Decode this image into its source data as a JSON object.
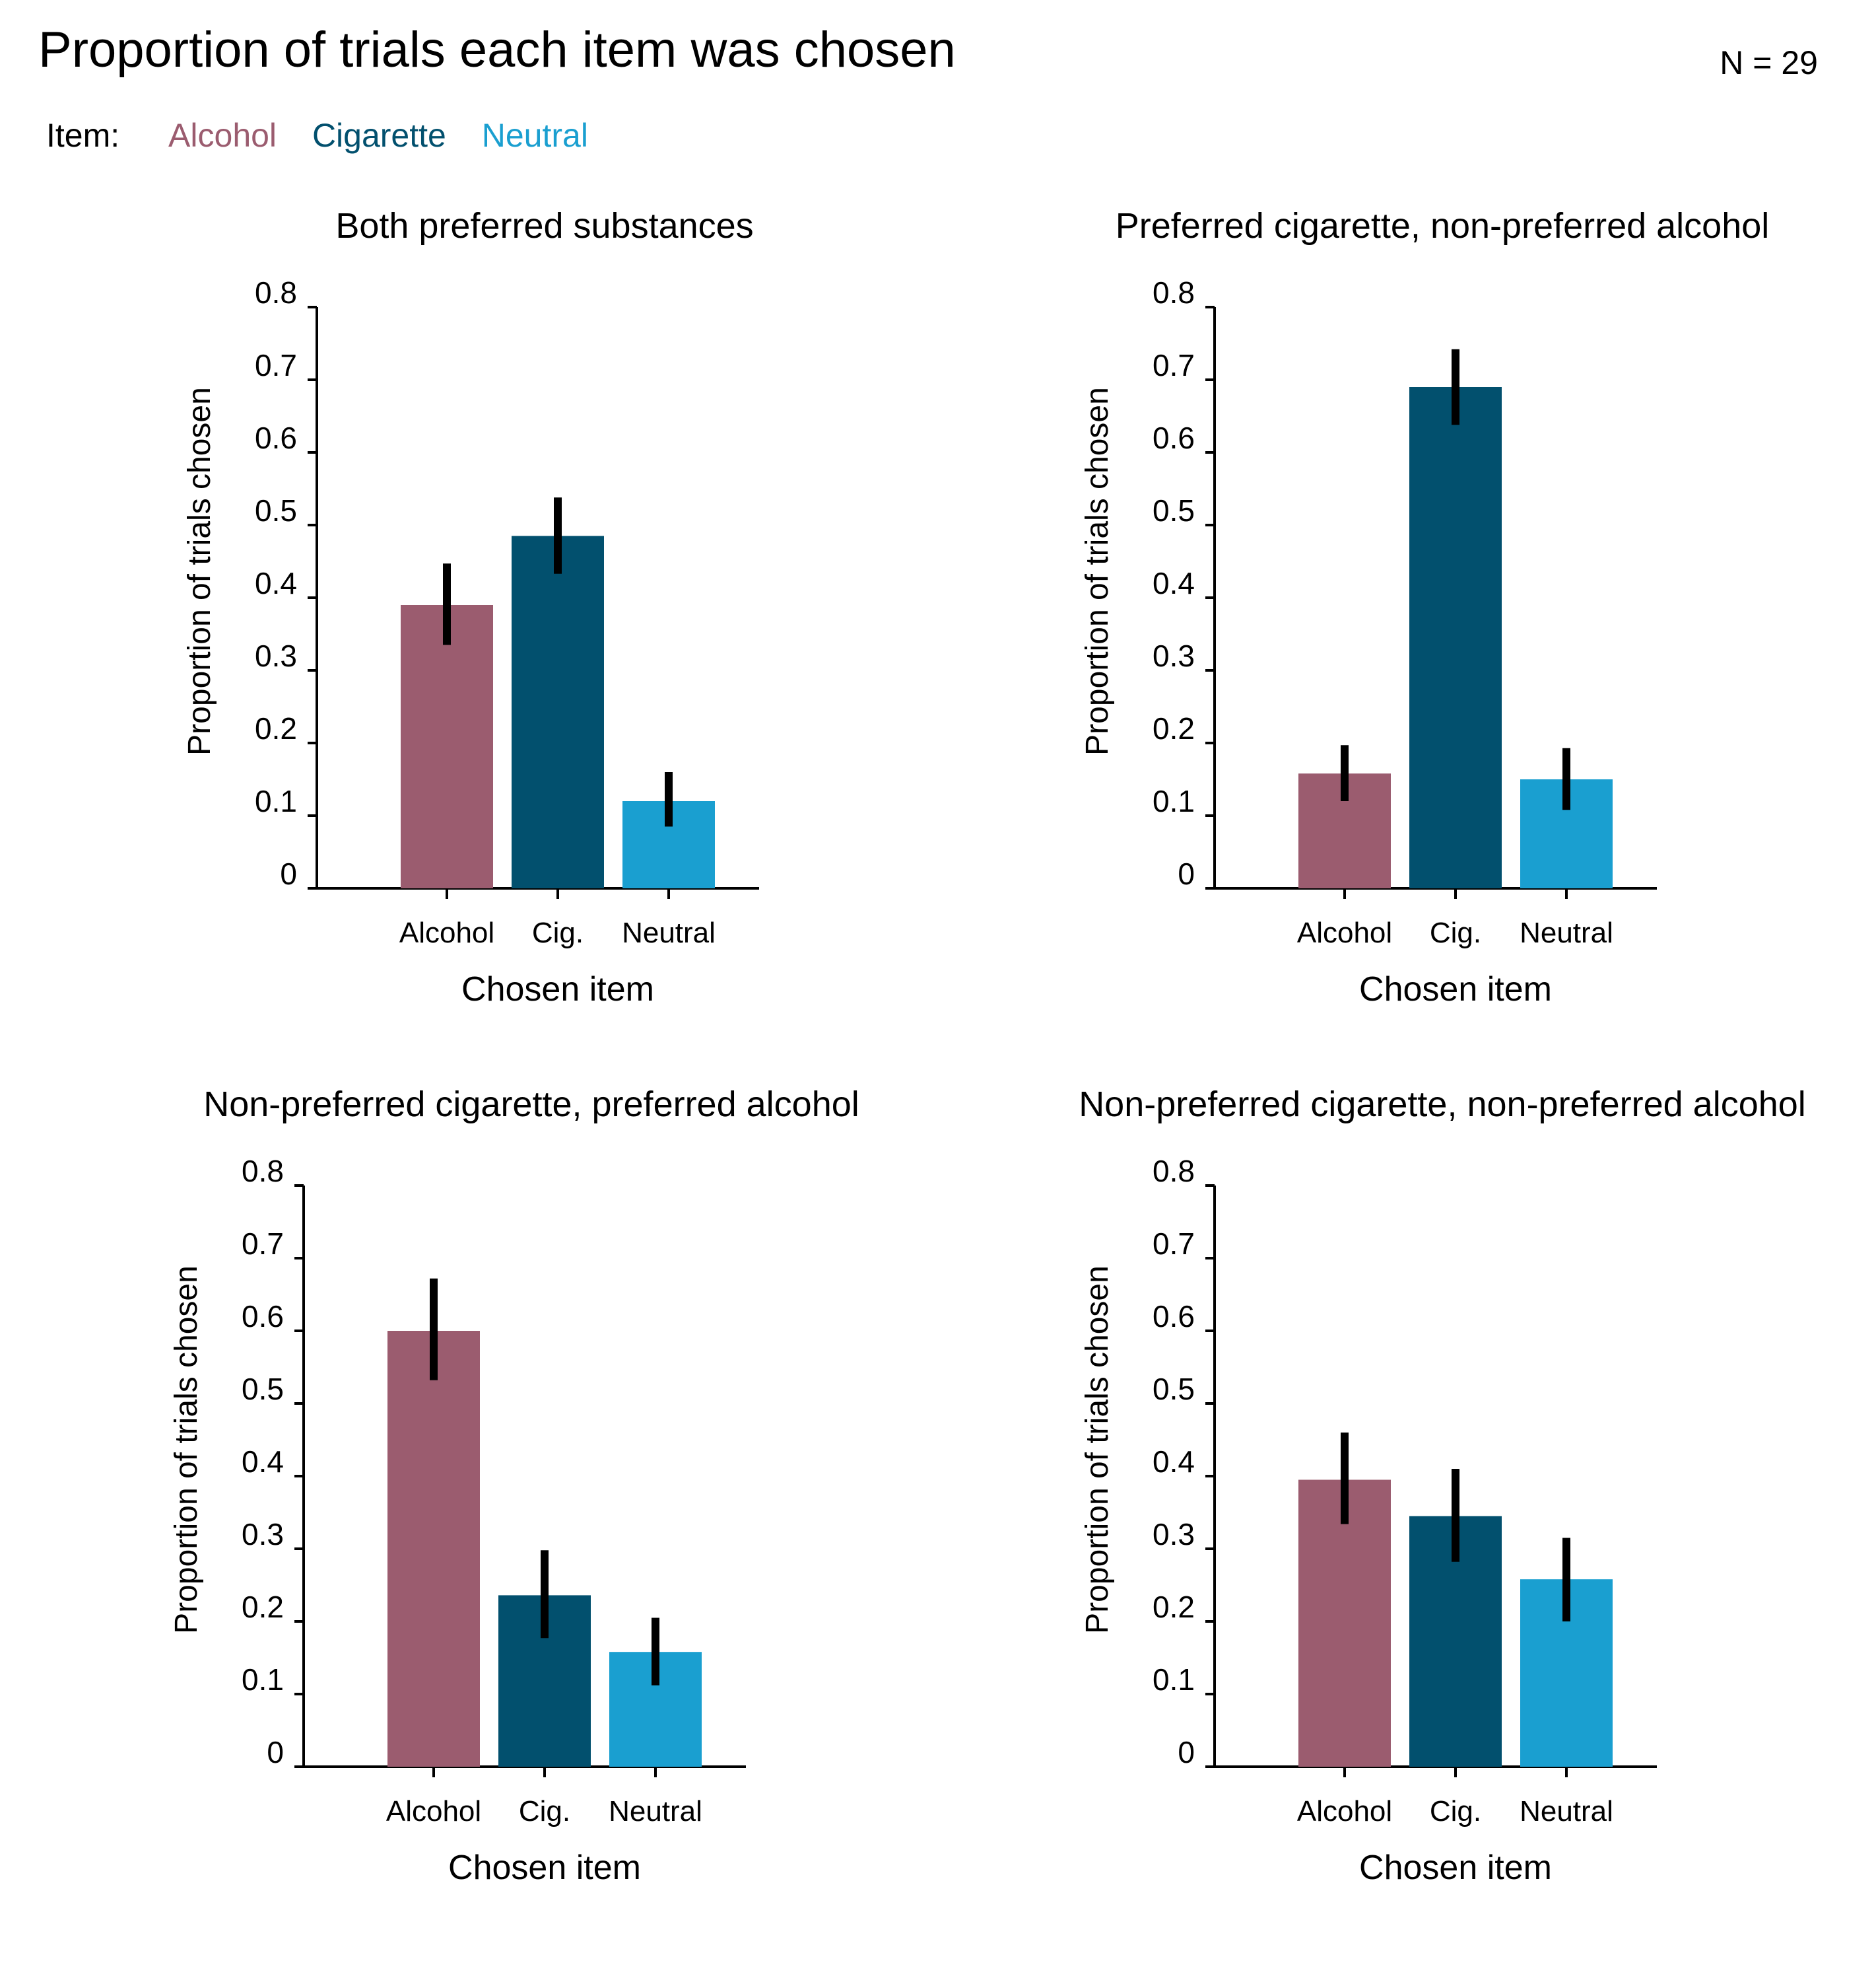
{
  "figure": {
    "title": "Proportion of trials each item was chosen",
    "n_label": "N = 29",
    "legend": {
      "title": "Item:",
      "items": [
        {
          "label": "Alcohol",
          "color": "#9b5c6f"
        },
        {
          "label": "Cigarette",
          "color": "#02506e"
        },
        {
          "label": "Neutral",
          "color": "#1a9fd0"
        }
      ]
    }
  },
  "chart_data": [
    {
      "type": "bar",
      "title": "Both preferred substances",
      "categories": [
        "Alcohol",
        "Cig.",
        "Neutral"
      ],
      "values": [
        0.39,
        0.485,
        0.12
      ],
      "error_low": [
        0.335,
        0.433,
        0.085
      ],
      "error_high": [
        0.447,
        0.538,
        0.16
      ],
      "colors": [
        "#9b5c6f",
        "#02506e",
        "#1a9fd0"
      ],
      "xlabel": "Chosen item",
      "ylabel": "Proportion of trials chosen",
      "ylim": [
        0,
        0.8
      ],
      "yticks": [
        "0",
        "0.1",
        "0.2",
        "0.3",
        "0.4",
        "0.5",
        "0.6",
        "0.7",
        "0.8"
      ]
    },
    {
      "type": "bar",
      "title": "Preferred cigarette, non-preferred alcohol",
      "categories": [
        "Alcohol",
        "Cig.",
        "Neutral"
      ],
      "values": [
        0.158,
        0.69,
        0.15
      ],
      "error_low": [
        0.12,
        0.638,
        0.108
      ],
      "error_high": [
        0.197,
        0.742,
        0.193
      ],
      "colors": [
        "#9b5c6f",
        "#02506e",
        "#1a9fd0"
      ],
      "xlabel": "Chosen item",
      "ylabel": "Proportion of trials chosen",
      "ylim": [
        0,
        0.8
      ],
      "yticks": [
        "0",
        "0.1",
        "0.2",
        "0.3",
        "0.4",
        "0.5",
        "0.6",
        "0.7",
        "0.8"
      ]
    },
    {
      "type": "bar",
      "title": "Non-preferred cigarette, preferred alcohol",
      "categories": [
        "Alcohol",
        "Cig.",
        "Neutral"
      ],
      "values": [
        0.6,
        0.236,
        0.158
      ],
      "error_low": [
        0.532,
        0.177,
        0.112
      ],
      "error_high": [
        0.672,
        0.298,
        0.205
      ],
      "colors": [
        "#9b5c6f",
        "#02506e",
        "#1a9fd0"
      ],
      "xlabel": "Chosen item",
      "ylabel": "Proportion of trials chosen",
      "ylim": [
        0,
        0.8
      ],
      "yticks": [
        "0",
        "0.1",
        "0.2",
        "0.3",
        "0.4",
        "0.5",
        "0.6",
        "0.7",
        "0.8"
      ]
    },
    {
      "type": "bar",
      "title": "Non-preferred cigarette, non-preferred alcohol",
      "categories": [
        "Alcohol",
        "Cig.",
        "Neutral"
      ],
      "values": [
        0.395,
        0.345,
        0.258
      ],
      "error_low": [
        0.334,
        0.282,
        0.2
      ],
      "error_high": [
        0.46,
        0.41,
        0.315
      ],
      "colors": [
        "#9b5c6f",
        "#02506e",
        "#1a9fd0"
      ],
      "xlabel": "Chosen item",
      "ylabel": "Proportion of trials chosen",
      "ylim": [
        0,
        0.8
      ],
      "yticks": [
        "0",
        "0.1",
        "0.2",
        "0.3",
        "0.4",
        "0.5",
        "0.6",
        "0.7",
        "0.8"
      ]
    }
  ]
}
